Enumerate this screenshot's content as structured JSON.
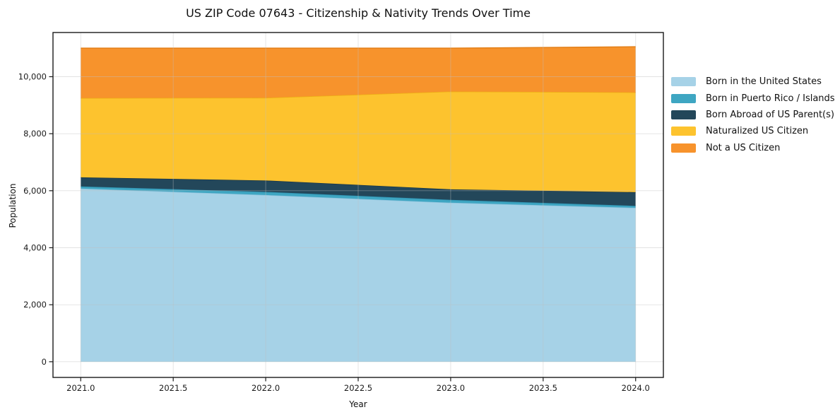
{
  "title": "US ZIP Code 07643 - Citizenship & Nativity Trends Over Time",
  "chart_data": {
    "type": "area",
    "stacked": true,
    "title": "US ZIP Code 07643 - Citizenship & Nativity Trends Over Time",
    "xlabel": "Year",
    "ylabel": "Population",
    "x": [
      2021,
      2022,
      2023,
      2024
    ],
    "x_ticks": [
      2021.0,
      2021.5,
      2022.0,
      2022.5,
      2023.0,
      2023.5,
      2024.0
    ],
    "x_tick_labels": [
      "2021.0",
      "2021.5",
      "2022.0",
      "2022.5",
      "2023.0",
      "2023.5",
      "2024.0"
    ],
    "y_ticks": [
      0,
      2000,
      4000,
      6000,
      8000,
      10000
    ],
    "y_tick_labels": [
      "0",
      "2,000",
      "4,000",
      "6,000",
      "8,000",
      "10,000"
    ],
    "xlim": [
      2020.85,
      2024.15
    ],
    "ylim": [
      -550,
      11550
    ],
    "grid": true,
    "legend_position": "right-outside",
    "series": [
      {
        "name": "Born in the United States",
        "color": "#a6d2e7",
        "edge_color": "#8cc2dc",
        "values": [
          6075,
          5850,
          5580,
          5400
        ]
      },
      {
        "name": "Born in Puerto Rico / Islands",
        "color": "#3ea6c2",
        "edge_color": "#2e8fae",
        "values": [
          75,
          110,
          100,
          70
        ]
      },
      {
        "name": "Born Abroad of US Parent(s)",
        "color": "#23475a",
        "edge_color": "#1a3848",
        "values": [
          320,
          400,
          370,
          480
        ]
      },
      {
        "name": "Naturalized US Citizen",
        "color": "#fdc32e",
        "edge_color": "#edae14",
        "values": [
          2780,
          2900,
          3430,
          3500
        ]
      },
      {
        "name": "Not a US Citizen",
        "color": "#f7932c",
        "edge_color": "#e37f17",
        "values": [
          1750,
          1740,
          1520,
          1600
        ]
      }
    ]
  }
}
